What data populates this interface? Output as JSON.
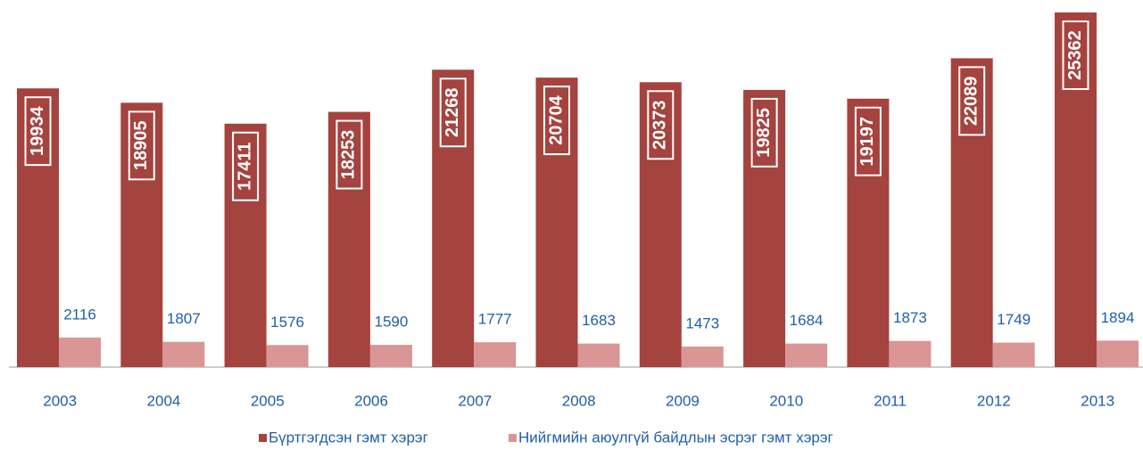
{
  "chart_data": {
    "type": "bar",
    "categories": [
      "2003",
      "2004",
      "2005",
      "2006",
      "2007",
      "2008",
      "2009",
      "2010",
      "2011",
      "2012",
      "2013"
    ],
    "series": [
      {
        "name": "Бүртгэгдсэн гэмт хэрэг",
        "color": "#a5433f",
        "values": [
          19934,
          18905,
          17411,
          18253,
          21268,
          20704,
          20373,
          19825,
          19197,
          22089,
          25362
        ]
      },
      {
        "name": "Нийгмийн  аюулгүй байдлын эсрэг гэмт хэрэг",
        "color": "#d99694",
        "values": [
          2116,
          1807,
          1576,
          1590,
          1777,
          1683,
          1473,
          1684,
          1873,
          1749,
          1894
        ]
      }
    ],
    "legend": "bottom"
  }
}
